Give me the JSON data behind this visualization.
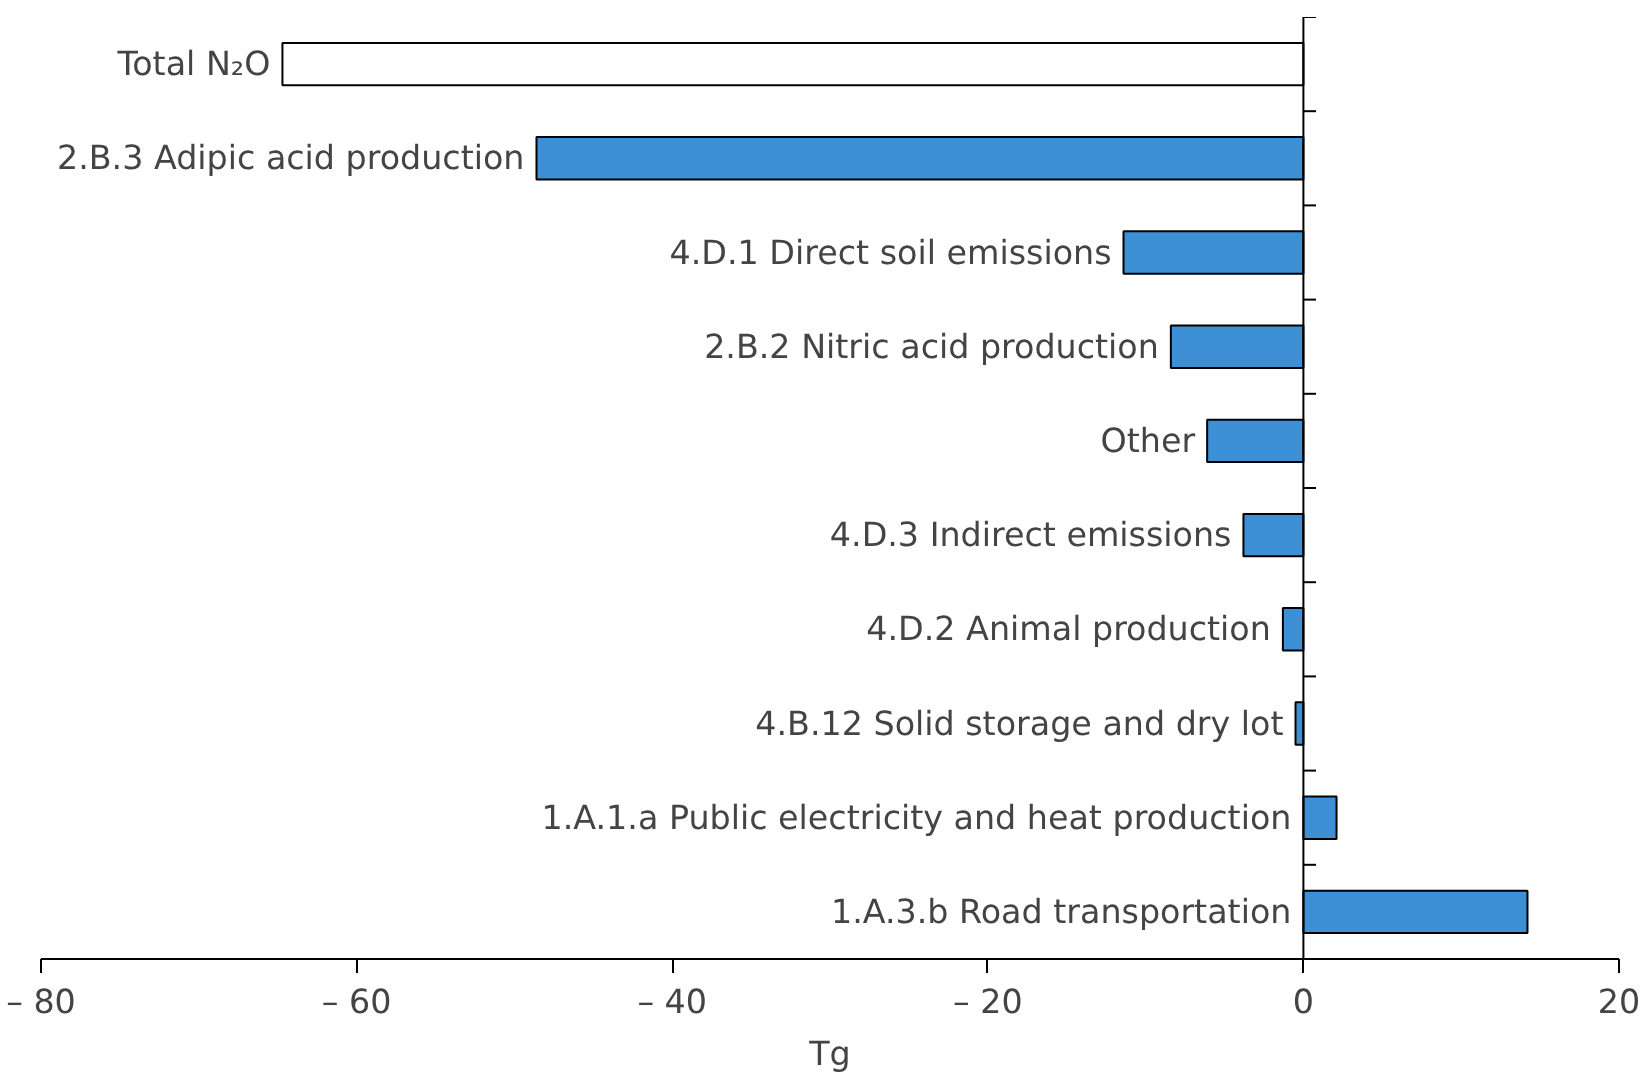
{
  "chart_data": {
    "type": "bar",
    "orientation": "horizontal",
    "xlabel": "Tg",
    "categories": [
      "Total N₂O",
      "2.B.3 Adipic acid production",
      "4.D.1 Direct soil emissions",
      "2.B.2 Nitric acid production",
      "Other",
      "4.D.3 Indirect emissions",
      "4.D.2 Animal production",
      "4.B.12 Solid storage and dry lot",
      "1.A.1.a Public electricity and heat production",
      "1.A.3.b Road transportation"
    ],
    "values": [
      -64.7,
      -48.6,
      -11.4,
      -8.4,
      -6.1,
      -3.8,
      -1.3,
      -0.5,
      2.1,
      14.2
    ],
    "colors": [
      "#ffffff",
      "#3d8fd6",
      "#3d8fd6",
      "#3d8fd6",
      "#3d8fd6",
      "#3d8fd6",
      "#3d8fd6",
      "#3d8fd6",
      "#3d8fd6",
      "#3d8fd6"
    ],
    "xlim": [
      -80,
      20
    ],
    "xticks": [
      {
        "value": -80,
        "label": "– 80"
      },
      {
        "value": -60,
        "label": "– 60"
      },
      {
        "value": -40,
        "label": "– 40"
      },
      {
        "value": -20,
        "label": "– 20"
      },
      0,
      20
    ],
    "grid": false
  }
}
